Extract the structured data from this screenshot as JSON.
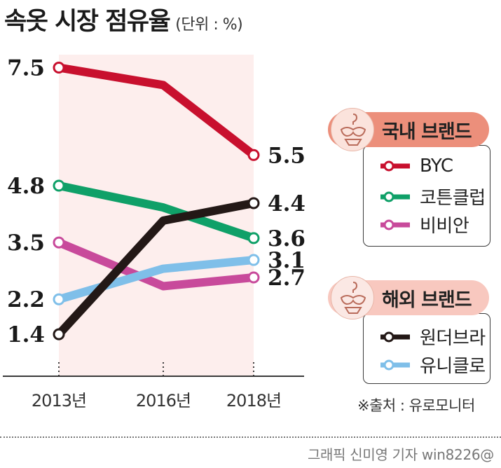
{
  "header": {
    "title": "속옷 시장 점유율",
    "unit": "(단위 : %)"
  },
  "chart_data": {
    "type": "line",
    "x": [
      "2013년",
      "2016년",
      "2018년"
    ],
    "ylim": [
      0,
      8.5
    ],
    "series": [
      {
        "name": "BYC",
        "color": "#c8102e",
        "values": [
          7.5,
          7.1,
          5.5
        ],
        "labels": [
          "7.5",
          "",
          "5.5"
        ]
      },
      {
        "name": "코튼클럽",
        "color": "#0fa068",
        "values": [
          4.8,
          4.3,
          3.6
        ],
        "labels": [
          "4.8",
          "",
          "3.6"
        ]
      },
      {
        "name": "비비안",
        "color": "#c84a9b",
        "values": [
          3.5,
          2.5,
          2.7
        ],
        "labels": [
          "3.5",
          "",
          "2.7"
        ]
      },
      {
        "name": "원더브라",
        "color": "#231816",
        "values": [
          1.4,
          4.0,
          4.4
        ],
        "labels": [
          "1.4",
          "",
          "4.4"
        ]
      },
      {
        "name": "유니클로",
        "color": "#7fbfe9",
        "values": [
          2.2,
          2.9,
          3.1
        ],
        "labels": [
          "2.2",
          "",
          "3.1"
        ]
      }
    ],
    "grid": false,
    "legend_position": "right"
  },
  "legend": {
    "domestic": {
      "title": "국내 브랜드",
      "color": "#ec8f7b",
      "items": [
        "BYC",
        "코튼클럽",
        "비비안"
      ]
    },
    "foreign": {
      "title": "해외 브랜드",
      "color": "#f8c8bf",
      "items": [
        "원더브라",
        "유니클로"
      ]
    }
  },
  "source": "※출처 : 유로모니터",
  "credit": "그래픽 신미영 기자 win8226@",
  "icons": {
    "legend_badge": "lingerie-icon"
  }
}
